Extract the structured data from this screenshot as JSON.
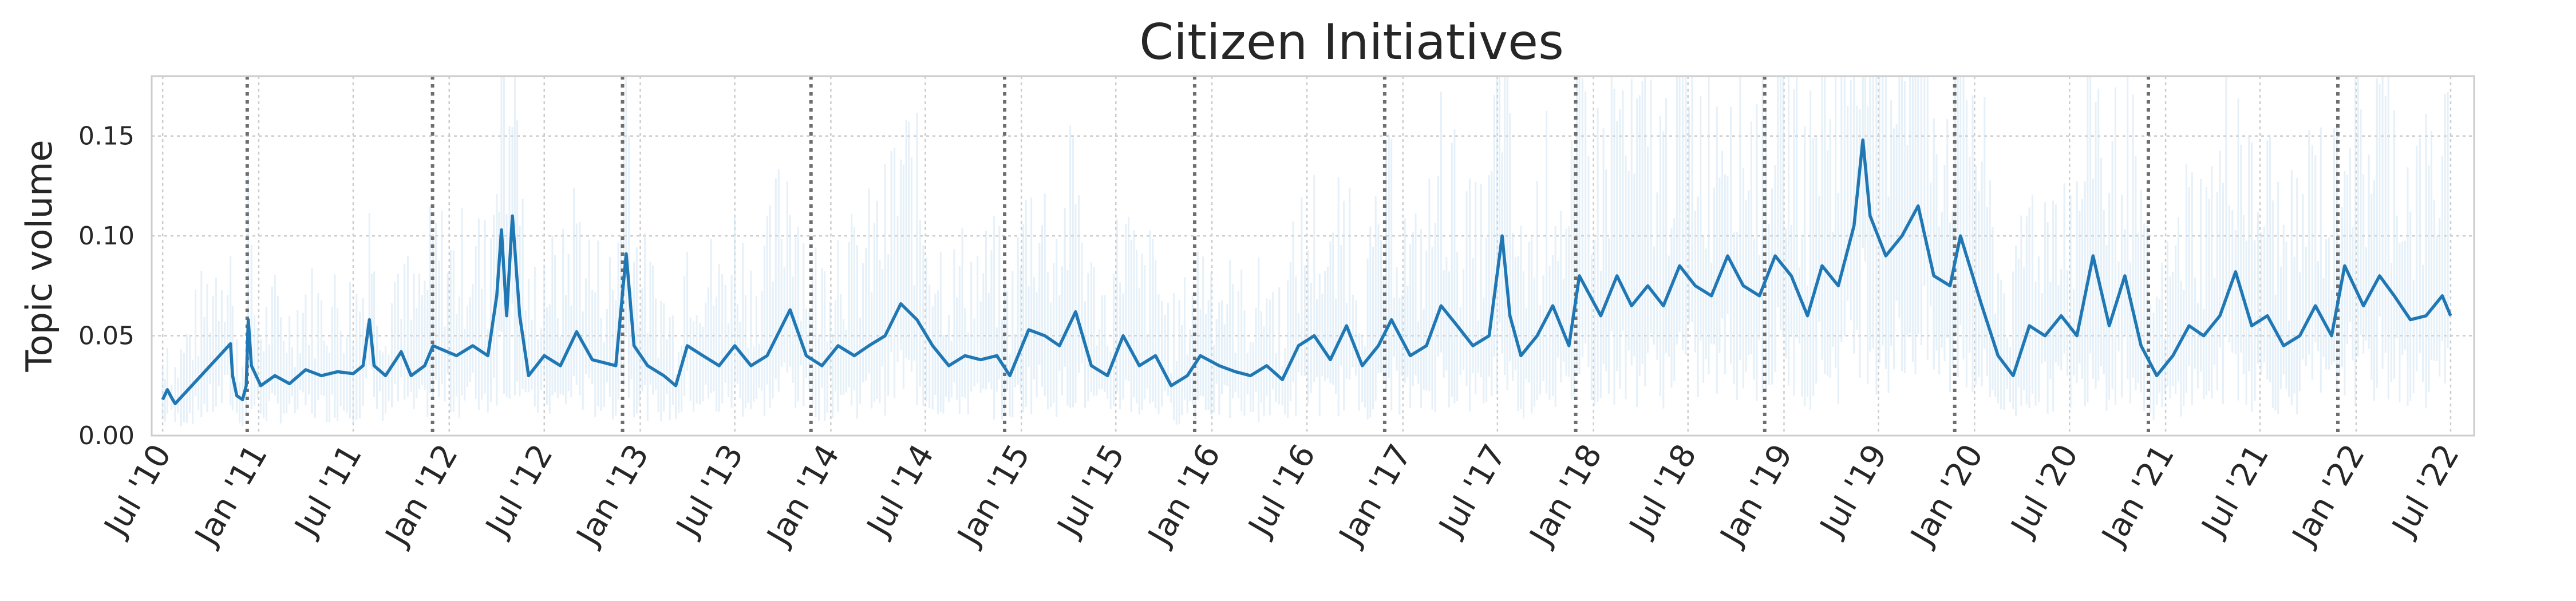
{
  "chart_data": {
    "type": "line",
    "title": "Citizen Initiatives",
    "xlabel": "",
    "ylabel": "Topic volume",
    "ylim": [
      0,
      0.18
    ],
    "yticks": [
      "0.00",
      "0.05",
      "0.10",
      "0.15"
    ],
    "yticks_values": [
      0,
      0.05,
      0.1,
      0.15
    ],
    "xlim": [
      "2010-06-10",
      "2022-08-15"
    ],
    "xticks": [
      "Jul '10",
      "Jan '11",
      "Jul '11",
      "Jan '12",
      "Jul '12",
      "Jan '13",
      "Jul '13",
      "Jan '14",
      "Jul '14",
      "Jan '15",
      "Jul '15",
      "Jan '16",
      "Jul '16",
      "Jan '17",
      "Jul '17",
      "Jan '18",
      "Jul '18",
      "Jan '19",
      "Jul '19",
      "Jan '20",
      "Jul '20",
      "Jan '21",
      "Jul '21",
      "Jan '22",
      "Jul '22"
    ],
    "xticks_dates": [
      "2010-07-01",
      "2011-01-01",
      "2011-07-01",
      "2012-01-01",
      "2012-07-01",
      "2013-01-01",
      "2013-07-01",
      "2014-01-01",
      "2014-07-01",
      "2015-01-01",
      "2015-07-01",
      "2016-01-01",
      "2016-07-01",
      "2017-01-01",
      "2017-07-01",
      "2018-01-01",
      "2018-07-01",
      "2019-01-01",
      "2019-07-01",
      "2020-01-01",
      "2020-07-01",
      "2021-01-01",
      "2021-07-01",
      "2022-01-01",
      "2022-07-01"
    ],
    "grid": true,
    "event_lines": [
      "2010-12-10",
      "2011-11-30",
      "2012-11-28",
      "2013-11-24",
      "2014-11-30",
      "2015-11-29",
      "2016-11-27",
      "2017-11-28",
      "2018-11-25",
      "2019-11-24",
      "2020-11-29",
      "2021-11-27"
    ],
    "series": [
      {
        "color": "#1f77b4",
        "points": [
          [
            "2010-07-01",
            0.018
          ],
          [
            "2010-07-10",
            0.023
          ],
          [
            "2010-07-18",
            0.019
          ],
          [
            "2010-07-25",
            0.016
          ],
          [
            "2010-11-08",
            0.046
          ],
          [
            "2010-11-12",
            0.03
          ],
          [
            "2010-11-20",
            0.02
          ],
          [
            "2010-12-01",
            0.018
          ],
          [
            "2010-12-08",
            0.025
          ],
          [
            "2010-12-12",
            0.058
          ],
          [
            "2010-12-18",
            0.035
          ],
          [
            "2011-01-05",
            0.025
          ],
          [
            "2011-02-01",
            0.03
          ],
          [
            "2011-03-01",
            0.026
          ],
          [
            "2011-04-01",
            0.033
          ],
          [
            "2011-05-01",
            0.03
          ],
          [
            "2011-06-01",
            0.032
          ],
          [
            "2011-07-01",
            0.031
          ],
          [
            "2011-07-20",
            0.035
          ],
          [
            "2011-08-01",
            0.058
          ],
          [
            "2011-08-10",
            0.035
          ],
          [
            "2011-09-01",
            0.03
          ],
          [
            "2011-10-01",
            0.042
          ],
          [
            "2011-10-20",
            0.03
          ],
          [
            "2011-11-15",
            0.035
          ],
          [
            "2011-12-01",
            0.045
          ],
          [
            "2012-01-15",
            0.04
          ],
          [
            "2012-02-15",
            0.045
          ],
          [
            "2012-03-15",
            0.04
          ],
          [
            "2012-04-01",
            0.07
          ],
          [
            "2012-04-10",
            0.103
          ],
          [
            "2012-04-20",
            0.06
          ],
          [
            "2012-05-01",
            0.11
          ],
          [
            "2012-05-15",
            0.06
          ],
          [
            "2012-06-01",
            0.03
          ],
          [
            "2012-07-01",
            0.04
          ],
          [
            "2012-08-01",
            0.035
          ],
          [
            "2012-09-01",
            0.052
          ],
          [
            "2012-10-01",
            0.038
          ],
          [
            "2012-11-15",
            0.035
          ],
          [
            "2012-12-05",
            0.091
          ],
          [
            "2012-12-20",
            0.045
          ],
          [
            "2013-01-15",
            0.035
          ],
          [
            "2013-02-15",
            0.03
          ],
          [
            "2013-03-10",
            0.025
          ],
          [
            "2013-04-01",
            0.045
          ],
          [
            "2013-05-01",
            0.04
          ],
          [
            "2013-06-01",
            0.035
          ],
          [
            "2013-07-01",
            0.045
          ],
          [
            "2013-08-01",
            0.035
          ],
          [
            "2013-09-01",
            0.04
          ],
          [
            "2013-10-15",
            0.063
          ],
          [
            "2013-11-15",
            0.04
          ],
          [
            "2013-12-15",
            0.035
          ],
          [
            "2014-01-15",
            0.045
          ],
          [
            "2014-02-15",
            0.04
          ],
          [
            "2014-03-15",
            0.045
          ],
          [
            "2014-04-15",
            0.05
          ],
          [
            "2014-05-15",
            0.066
          ],
          [
            "2014-06-15",
            0.058
          ],
          [
            "2014-07-15",
            0.045
          ],
          [
            "2014-08-15",
            0.035
          ],
          [
            "2014-09-15",
            0.04
          ],
          [
            "2014-10-15",
            0.038
          ],
          [
            "2014-11-15",
            0.04
          ],
          [
            "2014-12-10",
            0.03
          ],
          [
            "2015-01-15",
            0.053
          ],
          [
            "2015-02-15",
            0.05
          ],
          [
            "2015-03-15",
            0.045
          ],
          [
            "2015-04-15",
            0.062
          ],
          [
            "2015-05-15",
            0.035
          ],
          [
            "2015-06-15",
            0.03
          ],
          [
            "2015-07-15",
            0.05
          ],
          [
            "2015-08-15",
            0.035
          ],
          [
            "2015-09-15",
            0.04
          ],
          [
            "2015-10-15",
            0.025
          ],
          [
            "2015-11-15",
            0.03
          ],
          [
            "2015-12-10",
            0.04
          ],
          [
            "2016-01-15",
            0.035
          ],
          [
            "2016-02-15",
            0.032
          ],
          [
            "2016-03-15",
            0.03
          ],
          [
            "2016-04-15",
            0.035
          ],
          [
            "2016-05-15",
            0.028
          ],
          [
            "2016-06-15",
            0.045
          ],
          [
            "2016-07-15",
            0.05
          ],
          [
            "2016-08-15",
            0.038
          ],
          [
            "2016-09-15",
            0.055
          ],
          [
            "2016-10-15",
            0.035
          ],
          [
            "2016-11-15",
            0.045
          ],
          [
            "2016-12-10",
            0.058
          ],
          [
            "2017-01-15",
            0.04
          ],
          [
            "2017-02-15",
            0.045
          ],
          [
            "2017-03-15",
            0.065
          ],
          [
            "2017-04-15",
            0.055
          ],
          [
            "2017-05-15",
            0.045
          ],
          [
            "2017-06-15",
            0.05
          ],
          [
            "2017-07-10",
            0.1
          ],
          [
            "2017-07-25",
            0.06
          ],
          [
            "2017-08-15",
            0.04
          ],
          [
            "2017-09-15",
            0.05
          ],
          [
            "2017-10-15",
            0.065
          ],
          [
            "2017-11-15",
            0.045
          ],
          [
            "2017-12-05",
            0.08
          ],
          [
            "2018-01-15",
            0.06
          ],
          [
            "2018-02-15",
            0.08
          ],
          [
            "2018-03-15",
            0.065
          ],
          [
            "2018-04-15",
            0.075
          ],
          [
            "2018-05-15",
            0.065
          ],
          [
            "2018-06-15",
            0.085
          ],
          [
            "2018-07-15",
            0.075
          ],
          [
            "2018-08-15",
            0.07
          ],
          [
            "2018-09-15",
            0.09
          ],
          [
            "2018-10-15",
            0.075
          ],
          [
            "2018-11-15",
            0.07
          ],
          [
            "2018-12-15",
            0.09
          ],
          [
            "2019-01-15",
            0.08
          ],
          [
            "2019-02-15",
            0.06
          ],
          [
            "2019-03-15",
            0.085
          ],
          [
            "2019-04-15",
            0.075
          ],
          [
            "2019-05-15",
            0.105
          ],
          [
            "2019-06-01",
            0.148
          ],
          [
            "2019-06-15",
            0.11
          ],
          [
            "2019-07-15",
            0.09
          ],
          [
            "2019-08-15",
            0.1
          ],
          [
            "2019-09-15",
            0.115
          ],
          [
            "2019-10-15",
            0.08
          ],
          [
            "2019-11-15",
            0.075
          ],
          [
            "2019-12-05",
            0.1
          ],
          [
            "2020-01-15",
            0.065
          ],
          [
            "2020-02-15",
            0.04
          ],
          [
            "2020-03-15",
            0.03
          ],
          [
            "2020-04-15",
            0.055
          ],
          [
            "2020-05-15",
            0.05
          ],
          [
            "2020-06-15",
            0.06
          ],
          [
            "2020-07-15",
            0.05
          ],
          [
            "2020-08-15",
            0.09
          ],
          [
            "2020-09-15",
            0.055
          ],
          [
            "2020-10-15",
            0.08
          ],
          [
            "2020-11-15",
            0.045
          ],
          [
            "2020-12-15",
            0.03
          ],
          [
            "2021-01-15",
            0.04
          ],
          [
            "2021-02-15",
            0.055
          ],
          [
            "2021-03-15",
            0.05
          ],
          [
            "2021-04-15",
            0.06
          ],
          [
            "2021-05-15",
            0.082
          ],
          [
            "2021-06-15",
            0.055
          ],
          [
            "2021-07-15",
            0.06
          ],
          [
            "2021-08-15",
            0.045
          ],
          [
            "2021-09-15",
            0.05
          ],
          [
            "2021-10-15",
            0.065
          ],
          [
            "2021-11-15",
            0.05
          ],
          [
            "2021-12-10",
            0.085
          ],
          [
            "2022-01-15",
            0.065
          ],
          [
            "2022-02-15",
            0.08
          ],
          [
            "2022-03-15",
            0.07
          ],
          [
            "2022-04-15",
            0.058
          ],
          [
            "2022-05-15",
            0.06
          ],
          [
            "2022-06-15",
            0.07
          ],
          [
            "2022-07-01",
            0.06
          ]
        ]
      }
    ]
  }
}
